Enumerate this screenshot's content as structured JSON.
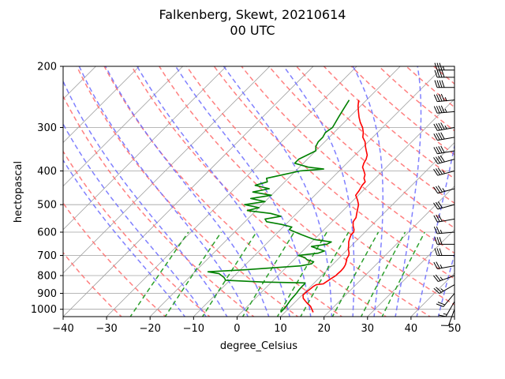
{
  "chart_data": {
    "type": "line",
    "title": "Falkenberg, Skewt, 20210614",
    "subtitle": "00 UTC",
    "xlabel": "degree_Celsius",
    "ylabel": "hectopascal",
    "xlim": [
      -40,
      50
    ],
    "ylim": [
      1050,
      200
    ],
    "y_scale": "log",
    "x_ticks": [
      "−40",
      "−30",
      "−20",
      "−10",
      "0",
      "10",
      "20",
      "30",
      "40",
      "50"
    ],
    "y_ticks": [
      "200",
      "300",
      "400",
      "500",
      "600",
      "700",
      "800",
      "900",
      "1000"
    ],
    "grid": true,
    "colors": {
      "temperature": "#ff0000",
      "dewpoint": "#008000",
      "isotherms": "#a0a0a0",
      "dry_adiabats": "#ff6a6a",
      "moist_adiabats": "#6a6aff",
      "mixing_ratio": "#2ca02c",
      "wind_barbs": "#000000"
    },
    "series": [
      {
        "role": "temperature",
        "pressure": [
          1020,
          1000,
          980,
          960,
          945,
          930,
          910,
          890,
          870,
          860,
          850,
          845,
          840,
          835,
          820,
          800,
          790,
          775,
          760,
          745,
          730,
          715,
          700,
          690,
          680,
          670,
          655,
          640,
          625,
          610,
          600,
          590,
          575,
          560,
          545,
          530,
          515,
          500,
          485,
          470,
          455,
          440,
          430,
          420,
          410,
          400,
          390,
          380,
          370,
          360,
          350,
          340,
          330,
          320,
          310,
          300,
          290,
          280,
          270,
          260,
          250
        ],
        "temp": [
          16.5,
          15.5,
          14.5,
          13.0,
          12.0,
          11.0,
          10.2,
          10.3,
          10.5,
          10.6,
          10.9,
          12.3,
          12.4,
          12.5,
          12.8,
          13.3,
          13.3,
          13.4,
          13.3,
          13.0,
          12.5,
          11.9,
          11.6,
          11.2,
          10.6,
          10.0,
          9.3,
          8.5,
          7.9,
          7.4,
          7.4,
          6.9,
          5.8,
          4.9,
          4.6,
          3.8,
          3.0,
          2.2,
          0.9,
          -0.6,
          -0.9,
          -1.4,
          -1.5,
          -2.6,
          -3.2,
          -4.3,
          -5.5,
          -6.1,
          -6.5,
          -7.2,
          -8.4,
          -9.6,
          -10.7,
          -12.3,
          -13.3,
          -14.6,
          -16.3,
          -17.8,
          -19.2,
          -20.6,
          -21.8
        ]
      },
      {
        "role": "dewpoint",
        "pressure": [
          1020,
          1000,
          980,
          960,
          940,
          920,
          900,
          880,
          860,
          845,
          840,
          835,
          825,
          810,
          800,
          790,
          780,
          770,
          760,
          750,
          740,
          730,
          720,
          710,
          700,
          690,
          680,
          670,
          660,
          650,
          640,
          630,
          620,
          610,
          600,
          590,
          580,
          570,
          560,
          550,
          540,
          530,
          520,
          510,
          500,
          490,
          480,
          470,
          460,
          450,
          440,
          430,
          420,
          410,
          400,
          395,
          390,
          385,
          380,
          370,
          360,
          350,
          340,
          330,
          320,
          310,
          300,
          290,
          280,
          270,
          260,
          250
        ],
        "temp": [
          9.0,
          9.0,
          8.9,
          8.7,
          8.5,
          8.4,
          8.3,
          8.1,
          8.0,
          8.0,
          7.9,
          -2.0,
          -11.0,
          -12.0,
          -13.0,
          -14.0,
          -17.0,
          -9.0,
          -3.0,
          3.0,
          5.0,
          5.0,
          3.0,
          2.0,
          0.0,
          4.0,
          5.0,
          3.0,
          1.0,
          4.0,
          4.5,
          0.0,
          -2.0,
          -4.0,
          -6.0,
          -8.0,
          -8.0,
          -11.0,
          -15.0,
          -16.0,
          -13.0,
          -16.0,
          -22.0,
          -20.0,
          -24.0,
          -20.0,
          -24.0,
          -20.0,
          -25.0,
          -22.0,
          -26.0,
          -24.0,
          -25.0,
          -22.0,
          -19.0,
          -14.0,
          -18.0,
          -20.0,
          -22.0,
          -22.0,
          -21.0,
          -20.0,
          -21.0,
          -21.5,
          -21.5,
          -22.0,
          -21.5,
          -22.0,
          -22.5,
          -23.0,
          -23.5,
          -24.0
        ]
      }
    ],
    "background_lines": {
      "isotherms_C": [
        -110,
        -100,
        -90,
        -80,
        -70,
        -60,
        -50,
        -40,
        -30,
        -20,
        -10,
        0,
        10,
        20,
        30,
        40,
        50
      ],
      "dry_adiabats_C": [
        -30,
        -20,
        -10,
        0,
        10,
        20,
        30,
        40,
        50,
        60,
        70,
        80,
        90,
        100,
        110,
        120,
        130,
        140,
        150,
        160,
        170,
        180,
        190,
        200
      ],
      "moist_adiabats_C": [
        -15,
        -10,
        -5,
        0,
        5,
        10,
        15,
        20,
        25,
        30,
        35,
        40,
        45
      ],
      "mixing_ratios_gkg": [
        0.5,
        1,
        2,
        4,
        7,
        10,
        16,
        24,
        32
      ]
    },
    "wind_barbs": {
      "pressure": [
        1000,
        950,
        900,
        850,
        800,
        750,
        700,
        650,
        600,
        550,
        500,
        450,
        400,
        370,
        350,
        320,
        300,
        270,
        250,
        230,
        215,
        205
      ],
      "direction_deg": [
        200,
        210,
        220,
        240,
        250,
        260,
        270,
        270,
        265,
        260,
        255,
        255,
        255,
        255,
        260,
        260,
        260,
        265,
        265,
        270,
        270,
        270
      ],
      "speed_kt": [
        10,
        15,
        20,
        25,
        25,
        25,
        30,
        30,
        25,
        30,
        30,
        35,
        35,
        40,
        40,
        40,
        45,
        45,
        45,
        40,
        40,
        35
      ]
    }
  }
}
